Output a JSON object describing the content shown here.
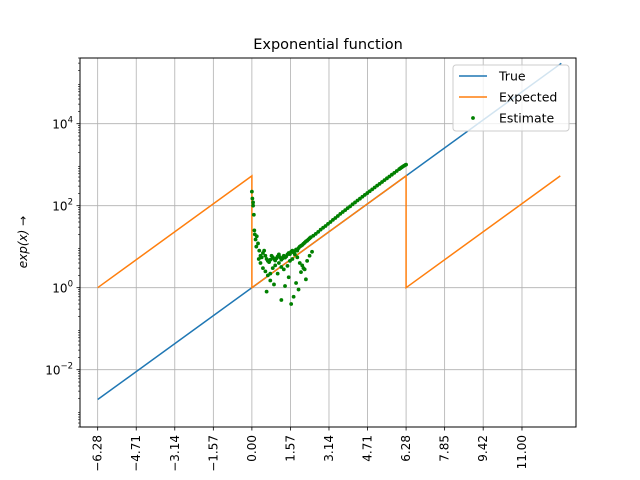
{
  "chart_data": {
    "type": "line",
    "title": "Exponential function",
    "xlabel": "",
    "ylabel": "exp(x) →",
    "yscale": "log",
    "grid": true,
    "legend_position": "top-right",
    "xlim": [
      -7.0,
      13.2
    ],
    "ylim": [
      0.0004,
      400000
    ],
    "x_ticks": [
      -6.28,
      -4.71,
      -3.14,
      -1.57,
      0.0,
      1.57,
      3.14,
      4.71,
      6.28,
      7.85,
      9.42,
      11.0
    ],
    "x_tick_labels": [
      "−6.28",
      "−4.71",
      "−3.14",
      "−1.57",
      "0.00",
      "1.57",
      "3.14",
      "4.71",
      "6.28",
      "7.85",
      "9.42",
      "11.00"
    ],
    "y_ticks": [
      {
        "exponent": "−2",
        "value": 0.01
      },
      {
        "exponent": "0",
        "value": 1
      },
      {
        "exponent": "2",
        "value": 100
      },
      {
        "exponent": "4",
        "value": 10000
      }
    ],
    "series": [
      {
        "name": "True",
        "color": "#1f77b4",
        "style": "line",
        "x": [
          -6.28,
          12.6
        ],
        "y": [
          0.00187,
          297000
        ]
      },
      {
        "name": "Expected",
        "color": "#ff7f0e",
        "style": "line",
        "x": [
          -6.28,
          0.0,
          0.0,
          6.28,
          6.28,
          12.56
        ],
        "y": [
          1.0,
          534,
          1.0,
          534,
          1.0,
          534
        ]
      },
      {
        "name": "Estimate",
        "color": "#008000",
        "style": "scatter",
        "x": [
          0.0,
          0.02,
          0.05,
          0.08,
          0.12,
          0.15,
          0.2,
          0.25,
          0.3,
          0.35,
          0.4,
          0.45,
          0.5,
          0.55,
          0.6,
          0.65,
          0.7,
          0.75,
          0.8,
          0.85,
          0.9,
          0.95,
          1.0,
          1.05,
          1.1,
          1.15,
          1.2,
          1.25,
          1.3,
          1.35,
          1.4,
          1.45,
          1.5,
          1.55,
          1.6,
          1.65,
          1.7,
          1.75,
          1.8,
          1.85,
          1.9,
          1.95,
          2.0,
          2.05,
          2.1,
          2.15,
          2.2,
          2.25,
          2.3,
          2.35,
          2.4,
          2.5,
          2.6,
          2.7,
          2.8,
          2.9,
          3.0,
          3.1,
          3.2,
          3.3,
          3.4,
          3.5,
          3.6,
          3.7,
          3.8,
          3.9,
          4.0,
          4.1,
          4.2,
          4.3,
          4.4,
          4.5,
          4.6,
          4.7,
          4.8,
          4.9,
          5.0,
          5.1,
          5.2,
          5.3,
          5.4,
          5.5,
          5.6,
          5.7,
          5.8,
          5.9,
          6.0,
          6.05,
          6.1,
          6.15,
          6.2,
          6.25,
          6.28,
          0.05,
          0.1,
          0.18,
          0.28,
          0.35,
          0.45,
          0.55,
          0.65,
          0.75,
          0.85,
          0.95,
          1.1,
          1.2,
          1.3,
          1.45,
          1.55,
          1.65,
          1.75,
          1.85,
          1.95,
          2.05,
          2.15,
          2.25,
          2.35,
          2.45,
          0.6,
          0.75,
          0.9,
          1.05,
          1.2,
          1.35,
          1.5,
          1.6,
          1.7,
          1.8,
          1.9,
          2.0,
          2.1,
          2.2
        ],
        "y": [
          220,
          150,
          100,
          60,
          20,
          15,
          18,
          12,
          8,
          6,
          5.5,
          7,
          8,
          6,
          5,
          4.5,
          4.2,
          4.8,
          6,
          5.5,
          5,
          4.6,
          5.2,
          5.8,
          6.5,
          5.5,
          4.8,
          5.2,
          6,
          5.4,
          5.8,
          6.5,
          7,
          6.6,
          7.5,
          8,
          7.2,
          7.8,
          8.5,
          8,
          9.2,
          10,
          10.5,
          11,
          11.8,
          12.5,
          13.5,
          14,
          15,
          16,
          17,
          18.5,
          20.5,
          23,
          26,
          29,
          32,
          36,
          40,
          45,
          50,
          56,
          63,
          70,
          78,
          87,
          96,
          108,
          120,
          134,
          148,
          165,
          183,
          203,
          225,
          250,
          278,
          308,
          340,
          378,
          420,
          465,
          515,
          570,
          630,
          700,
          780,
          820,
          860,
          900,
          940,
          980,
          1000,
          120,
          25,
          10,
          5,
          4,
          3,
          2.5,
          2,
          2.2,
          3,
          3.5,
          4,
          3.2,
          2.8,
          3.4,
          4.5,
          5,
          6.5,
          5.5,
          4,
          3.5,
          2.8,
          4.5,
          6,
          7.5,
          0.8,
          1.5,
          1.2,
          2.2,
          0.5,
          1.1,
          1.8,
          0.4,
          0.6,
          1.3,
          0.9,
          2.4,
          3,
          1.6
        ]
      }
    ]
  }
}
